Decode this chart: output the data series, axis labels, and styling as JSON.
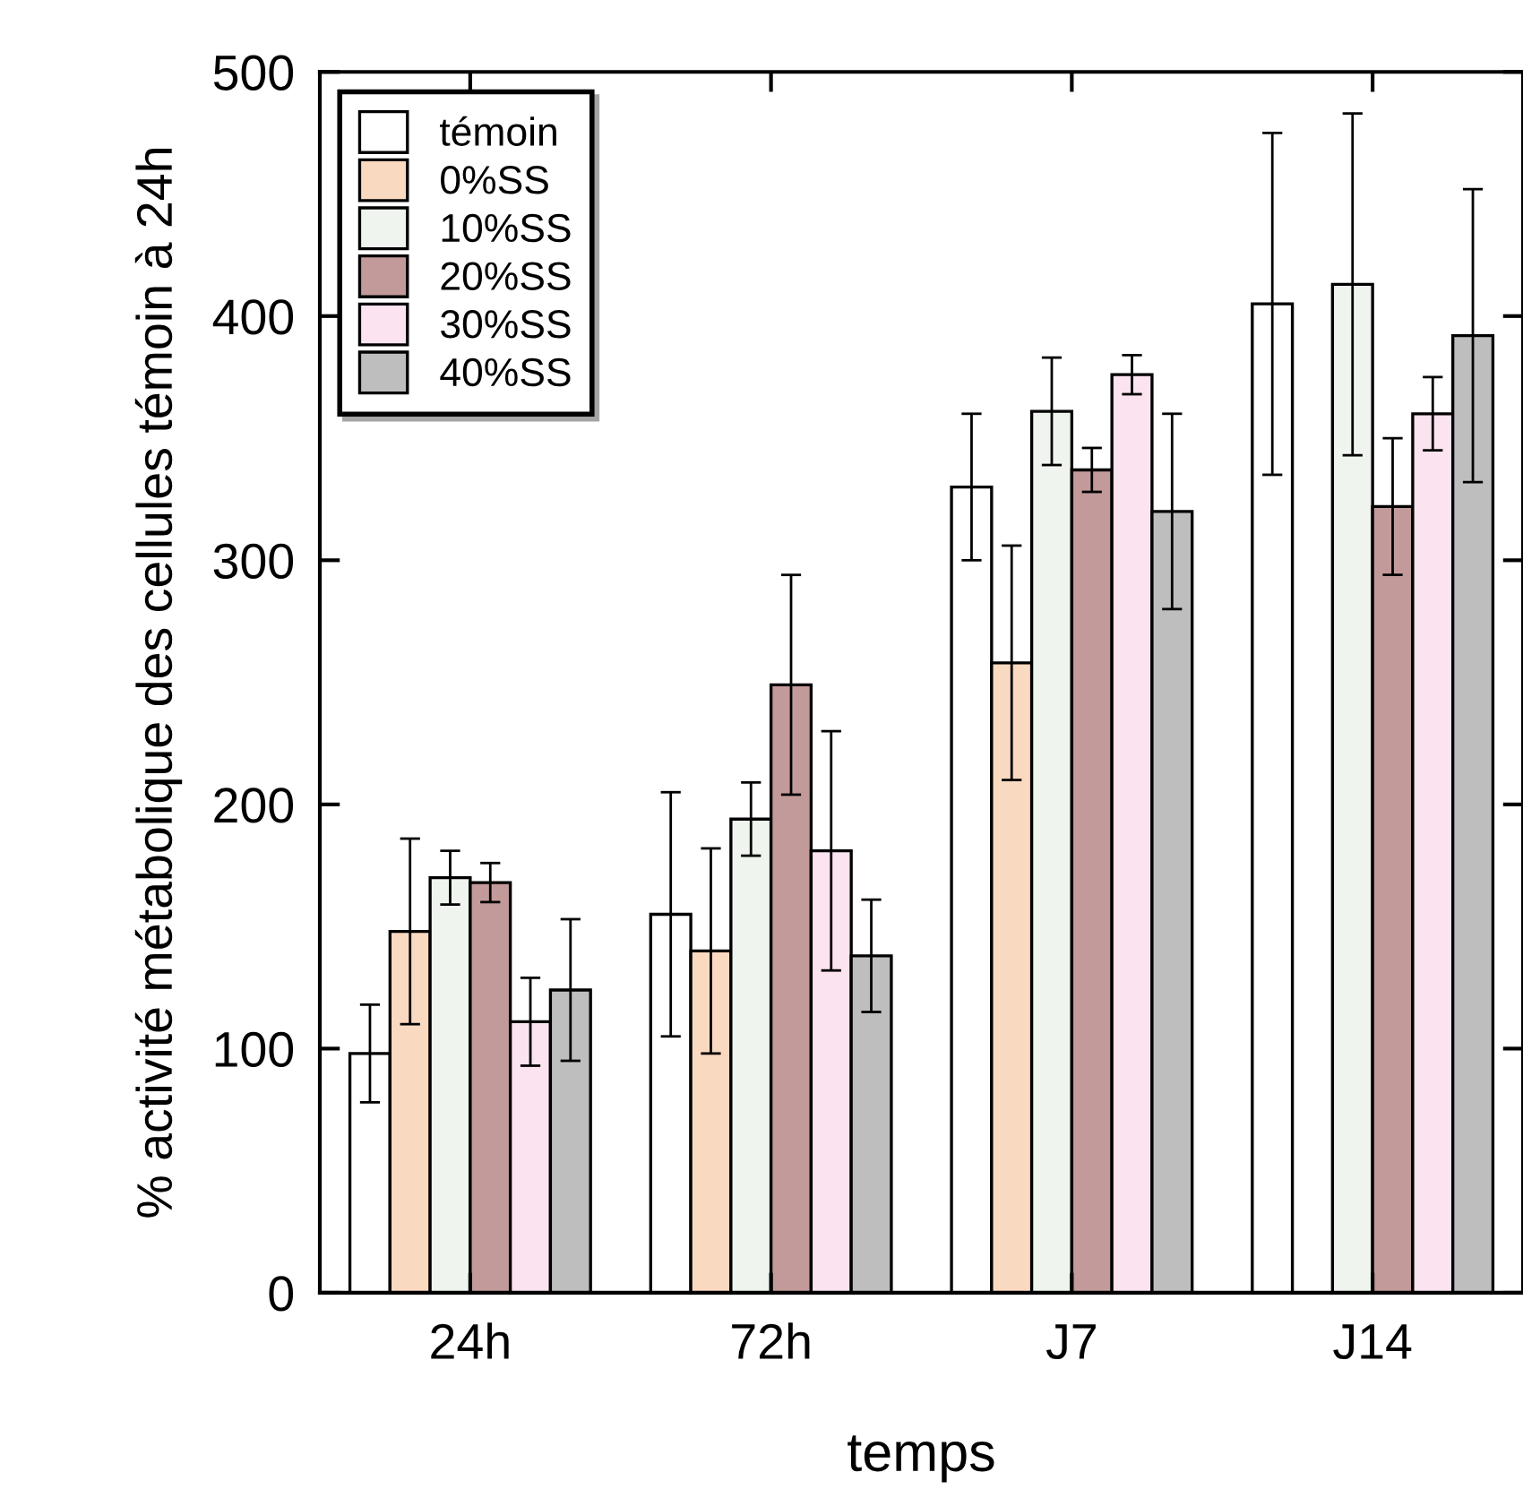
{
  "chart_data": {
    "type": "bar",
    "xlabel": "temps",
    "ylabel": "% activité métabolique des cellules témoin à 24h",
    "categories": [
      "24h",
      "72h",
      "J7",
      "J14"
    ],
    "series": [
      {
        "name": "témoin",
        "color": "#ffffff",
        "values": [
          98,
          155,
          330,
          405
        ],
        "errors": [
          20,
          50,
          30,
          70
        ]
      },
      {
        "name": "0%SS",
        "color": "#fad9c1",
        "values": [
          148,
          140,
          258,
          null
        ],
        "errors": [
          38,
          42,
          48,
          null
        ]
      },
      {
        "name": "10%SS",
        "color": "#eff5ee",
        "values": [
          170,
          194,
          361,
          413
        ],
        "errors": [
          11,
          15,
          22,
          70
        ]
      },
      {
        "name": "20%SS",
        "color": "#c39a9a",
        "values": [
          168,
          249,
          337,
          322
        ],
        "errors": [
          8,
          45,
          9,
          28
        ]
      },
      {
        "name": "30%SS",
        "color": "#fbe3ef",
        "values": [
          111,
          181,
          376,
          360
        ],
        "errors": [
          18,
          49,
          8,
          15
        ]
      },
      {
        "name": "40%SS",
        "color": "#bebebe",
        "values": [
          124,
          138,
          320,
          392
        ],
        "errors": [
          29,
          23,
          40,
          60
        ]
      }
    ],
    "ylim": [
      0,
      500
    ],
    "yticks": [
      0,
      100,
      200,
      300,
      400,
      500
    ],
    "legend": "top left",
    "grid": false
  }
}
